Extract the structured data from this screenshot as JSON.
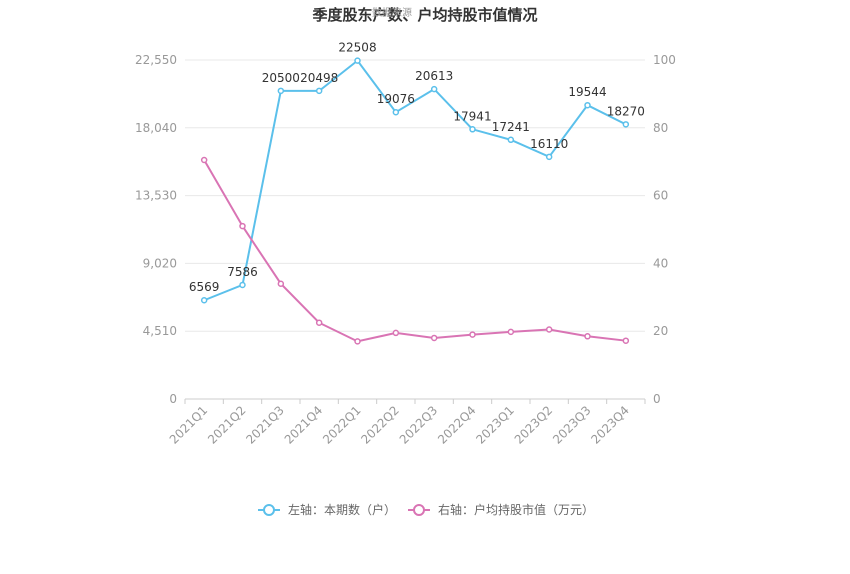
{
  "chart_data": {
    "type": "line",
    "title": "季度股东户数、户均持股市值情况",
    "watermark": "数据来源",
    "categories": [
      "2021Q1",
      "2021Q2",
      "2021Q3",
      "2021Q4",
      "2022Q1",
      "2022Q2",
      "2022Q3",
      "2022Q4",
      "2023Q1",
      "2023Q2",
      "2023Q3",
      "2023Q4"
    ],
    "left_axis": {
      "ticks": [
        "0",
        "4,510",
        "9,020",
        "13,530",
        "18,040",
        "22,550"
      ],
      "ylim": [
        0,
        22550
      ]
    },
    "right_axis": {
      "ticks": [
        "0",
        "20",
        "40",
        "60",
        "80",
        "100"
      ],
      "ylim": [
        0,
        100
      ]
    },
    "grid": true,
    "legend_position": "bottom",
    "series": [
      {
        "name": "左轴：本期数（户）",
        "axis": "left",
        "color": "#5bc0eb",
        "values": [
          6569,
          7586,
          20500,
          20498,
          22508,
          19076,
          20613,
          17941,
          17241,
          16110,
          19544,
          18270
        ],
        "labels": [
          "6569",
          "7586",
          "20500",
          "20498",
          "22508",
          "19076",
          "20613",
          "17941",
          "17241",
          "16110",
          "19544",
          "18270"
        ]
      },
      {
        "name": "右轴：户均持股市值（万元）",
        "axis": "right",
        "color": "#d974b4",
        "values": [
          70.5,
          51.0,
          34.0,
          22.5,
          17.0,
          19.5,
          18.0,
          19.0,
          19.8,
          20.5,
          18.5,
          17.2
        ]
      }
    ]
  }
}
